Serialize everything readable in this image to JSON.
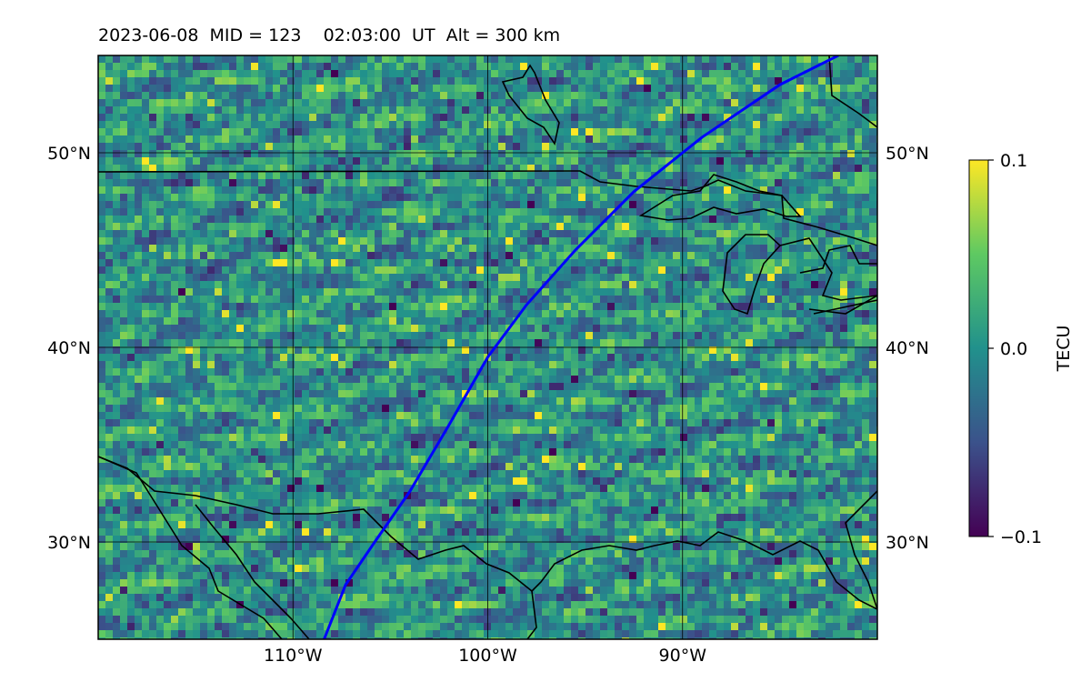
{
  "title": {
    "date": "2023-06-08",
    "mid": "MID = 123",
    "time": "02:03:00",
    "time_unit": "UT",
    "alt": "Alt = 300 km"
  },
  "map": {
    "lon_range": [
      -120,
      -80
    ],
    "lat_range": [
      25,
      55
    ],
    "lon_ticks": [
      {
        "value": -110,
        "label": "110°W"
      },
      {
        "value": -100,
        "label": "100°W"
      },
      {
        "value": -90,
        "label": "90°W"
      }
    ],
    "lat_ticks": [
      {
        "value": 50,
        "label": "50°N"
      },
      {
        "value": 40,
        "label": "40°N"
      },
      {
        "value": 30,
        "label": "30°N"
      }
    ],
    "gridlines": true,
    "track_color": "#0000ff",
    "track": [
      [
        -108.4,
        25
      ],
      [
        -107.3,
        27.8
      ],
      [
        -105.8,
        30
      ],
      [
        -104,
        32.6
      ],
      [
        -102,
        36
      ],
      [
        -100,
        39.5
      ],
      [
        -98,
        42.2
      ],
      [
        -95.5,
        45
      ],
      [
        -92.5,
        48
      ],
      [
        -89,
        50.8
      ],
      [
        -85,
        53.5
      ],
      [
        -82,
        55
      ]
    ]
  },
  "colorbar": {
    "label": "TECU",
    "min": -0.1,
    "max": 0.1,
    "ticks": [
      {
        "value": 0.1,
        "label": "0.1"
      },
      {
        "value": 0.0,
        "label": "0.0"
      },
      {
        "value": -0.1,
        "label": "−0.1"
      }
    ],
    "colormap": [
      "#440154",
      "#3b528b",
      "#21918c",
      "#5ec962",
      "#fde725"
    ]
  }
}
